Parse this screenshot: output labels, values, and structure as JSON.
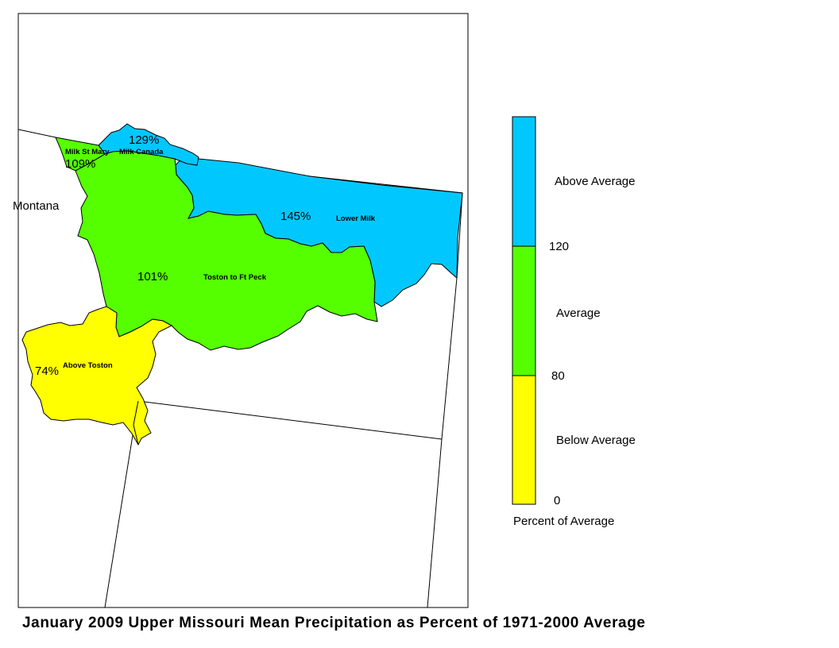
{
  "title": "January 2009 Upper Missouri Mean Precipitation as Percent of 1971-2000 Average",
  "map": {
    "state_label": "Montana",
    "basins": [
      {
        "name": "Milk St Mary",
        "percent": "109%",
        "category": "Average"
      },
      {
        "name": "Milk Canada",
        "percent": "129%",
        "category": "Above Average"
      },
      {
        "name": "Lower Milk",
        "percent": "145%",
        "category": "Above Average"
      },
      {
        "name": "Toston to Ft Peck",
        "percent": "101%",
        "category": "Average"
      },
      {
        "name": "Above Toston",
        "percent": "74%",
        "category": "Below Average"
      }
    ]
  },
  "legend": {
    "title": "Percent of Average",
    "classes": [
      {
        "label": "Above Average",
        "color": "#00c8ff"
      },
      {
        "label": "Average",
        "color": "#55ff00"
      },
      {
        "label": "Below Average",
        "color": "#ffff00"
      }
    ],
    "ticks": [
      "120",
      "80",
      "0"
    ]
  },
  "colors": {
    "above_average": "#00c8ff",
    "average": "#55ff00",
    "below_average": "#ffff00",
    "border": "#000000"
  }
}
